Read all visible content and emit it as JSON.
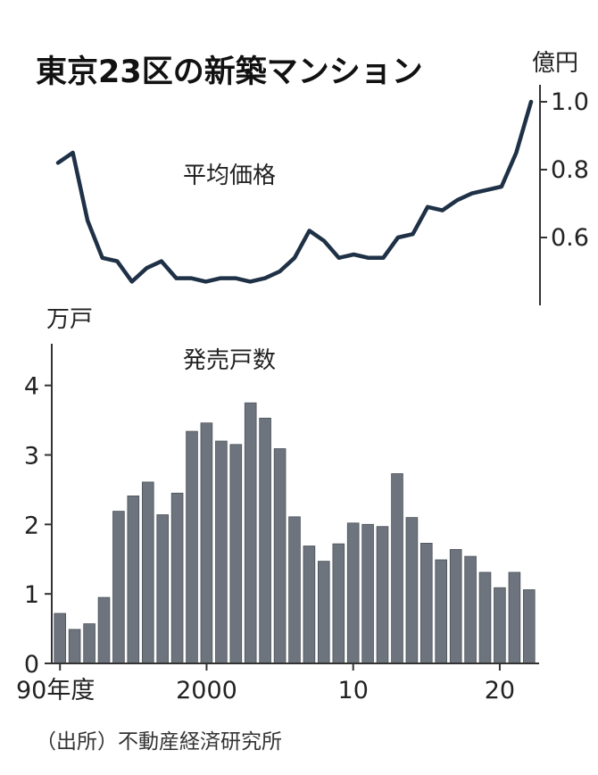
{
  "title": "東京23区の新築マンション",
  "source": "（出所）不動産経済研究所",
  "chart_data": [
    {
      "type": "line",
      "name": "平均価格",
      "unit": "億円",
      "y_ticks": [
        "1.0",
        "0.8",
        "0.6"
      ],
      "y_tick_values": [
        1.0,
        0.8,
        0.6
      ],
      "ylim": [
        0.4,
        1.05
      ],
      "x": [
        1990,
        1991,
        1992,
        1993,
        1994,
        1995,
        1996,
        1997,
        1998,
        1999,
        2000,
        2001,
        2002,
        2003,
        2004,
        2005,
        2006,
        2007,
        2008,
        2009,
        2010,
        2011,
        2012,
        2013,
        2014,
        2015,
        2016,
        2017,
        2018,
        2019,
        2020,
        2021,
        2022
      ],
      "values": [
        0.82,
        0.85,
        0.65,
        0.54,
        0.53,
        0.47,
        0.51,
        0.53,
        0.48,
        0.48,
        0.47,
        0.48,
        0.48,
        0.47,
        0.48,
        0.5,
        0.54,
        0.62,
        0.59,
        0.54,
        0.55,
        0.54,
        0.54,
        0.6,
        0.61,
        0.69,
        0.68,
        0.71,
        0.73,
        0.74,
        0.75,
        0.85,
        1.0
      ],
      "color": "#1f3146"
    },
    {
      "type": "bar",
      "name": "発売戸数",
      "unit": "万戸",
      "y_ticks": [
        "4",
        "3",
        "2",
        "1",
        "0"
      ],
      "y_tick_values": [
        4,
        3,
        2,
        1,
        0
      ],
      "ylim": [
        0,
        4.6
      ],
      "x": [
        1990,
        1991,
        1992,
        1993,
        1994,
        1995,
        1996,
        1997,
        1998,
        1999,
        2000,
        2001,
        2002,
        2003,
        2004,
        2005,
        2006,
        2007,
        2008,
        2009,
        2010,
        2011,
        2012,
        2013,
        2014,
        2015,
        2016,
        2017,
        2018,
        2019,
        2020,
        2021,
        2022
      ],
      "x_tick_labels": [
        "90年度",
        "2000",
        "10",
        "20"
      ],
      "x_tick_years": [
        1990,
        2000,
        2010,
        2020
      ],
      "values": [
        0.72,
        0.49,
        0.57,
        0.95,
        2.19,
        2.41,
        2.61,
        2.14,
        2.45,
        3.34,
        3.46,
        3.2,
        3.15,
        3.75,
        3.53,
        3.09,
        2.11,
        1.69,
        1.47,
        1.72,
        2.02,
        2.0,
        1.97,
        2.73,
        2.1,
        1.73,
        1.49,
        1.64,
        1.54,
        1.31,
        1.09,
        1.31,
        1.06
      ],
      "color": "#6d747d"
    }
  ]
}
